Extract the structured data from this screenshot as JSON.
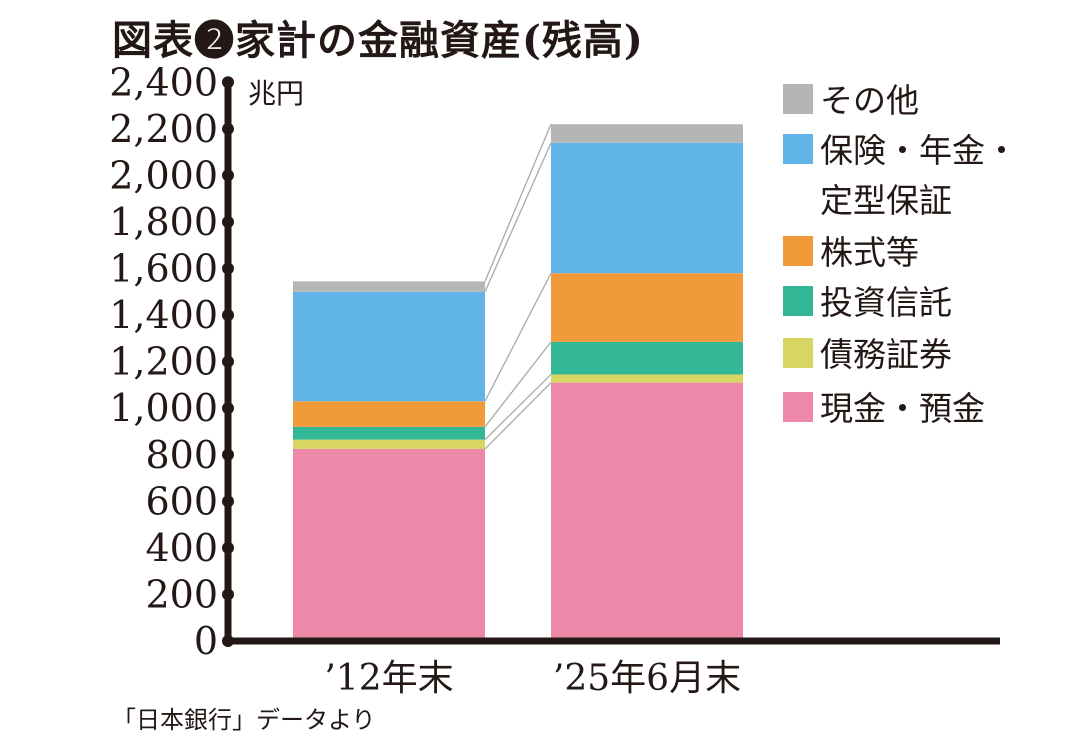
{
  "chart_data": {
    "type": "bar",
    "stacked": true,
    "title": "図表❷家計の金融資産(残高)",
    "ylabel": "兆円",
    "xlabel": "",
    "ylim": [
      0,
      2400
    ],
    "yticks": [
      "0",
      "200",
      "400",
      "600",
      "800",
      "1,000",
      "1,200",
      "1,400",
      "1,600",
      "1,800",
      "2,000",
      "2,200",
      "2,400"
    ],
    "categories": [
      "’12年末",
      "’25年6月末"
    ],
    "series": [
      {
        "name": "現金・預金",
        "color": "#ee88a8",
        "values": [
          825,
          1110
        ]
      },
      {
        "name": "債務証券",
        "color": "#d8d663",
        "values": [
          40,
          35
        ]
      },
      {
        "name": "投資信託",
        "color": "#34b797",
        "values": [
          55,
          140
        ]
      },
      {
        "name": "株式等",
        "color": "#f19a3a",
        "values": [
          110,
          295
        ]
      },
      {
        "name": "保険・年金・定型保証",
        "color": "#60b4e8",
        "values": [
          470,
          560
        ]
      },
      {
        "name": "その他",
        "color": "#b4b5b5",
        "values": [
          45,
          80
        ]
      }
    ],
    "legend": {
      "position": "right",
      "order": [
        "その他",
        "保険・年金・定型保証",
        "株式等",
        "投資信託",
        "債務証券",
        "現金・預金"
      ],
      "lines": [
        [
          "その他"
        ],
        [
          "保険・年金・",
          "定型保証"
        ],
        [
          "株式等"
        ],
        [
          "投資信託"
        ],
        [
          "債務証券"
        ],
        [
          "現金・預金"
        ]
      ]
    },
    "grid": false,
    "source": "「日本銀行」データより"
  }
}
